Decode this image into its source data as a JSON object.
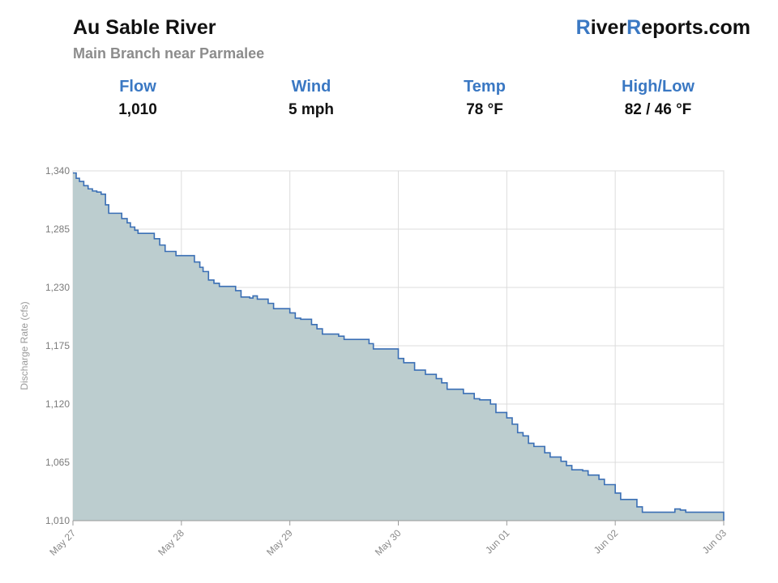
{
  "header": {
    "title": "Au Sable River",
    "subtitle": "Main Branch near Parmalee",
    "brand_r1": "R",
    "brand_part1": "iver",
    "brand_r2": "R",
    "brand_part2": "eports.com"
  },
  "stats": [
    {
      "label": "Flow",
      "value": "1,010"
    },
    {
      "label": "Wind",
      "value": "5 mph"
    },
    {
      "label": "Temp",
      "value": "78 °F"
    },
    {
      "label": "High/Low",
      "value": "82 / 46 °F"
    }
  ],
  "colors": {
    "accent": "#3a78c3",
    "line": "#3a6fb5",
    "fill": "#bccdcf",
    "grid": "#dcdcdc"
  },
  "chart_data": {
    "type": "area",
    "title": "",
    "xlabel": "",
    "ylabel": "Discharge Rate (cfs)",
    "ylim": [
      1010,
      1340
    ],
    "xlim_days": [
      0,
      7
    ],
    "grid": true,
    "y_ticks": [
      "1,340",
      "1,285",
      "1,230",
      "1,175",
      "1,120",
      "1,065",
      "1,010"
    ],
    "y_tick_values": [
      1340,
      1285,
      1230,
      1175,
      1120,
      1065,
      1010
    ],
    "x_ticks": [
      "May 27",
      "May 28",
      "May 29",
      "May 30",
      "Jun 01",
      "Jun 02",
      "Jun 03"
    ],
    "x_tick_days": [
      0,
      1,
      2,
      3,
      4,
      5,
      6
    ],
    "series": [
      {
        "x_days": [
          0,
          0.03,
          0.06,
          0.1,
          0.14,
          0.18,
          0.22,
          0.26,
          0.3,
          0.33,
          0.37,
          0.45,
          0.5,
          0.53,
          0.57,
          0.6,
          0.65,
          0.75,
          0.8,
          0.85,
          0.95,
          1.05,
          1.12,
          1.17,
          1.2,
          1.25,
          1.3,
          1.35,
          1.4,
          1.5,
          1.55,
          1.6,
          1.63,
          1.66,
          1.7,
          1.8,
          1.85,
          1.88,
          1.92,
          2.0,
          2.05,
          2.1,
          2.2,
          2.25,
          2.3,
          2.45,
          2.5,
          2.7,
          2.73,
          2.77,
          2.8,
          2.85,
          3.0,
          3.05,
          3.15,
          3.2,
          3.25,
          3.35,
          3.4,
          3.45,
          3.5,
          3.6,
          3.65,
          3.7,
          3.75,
          3.85,
          3.9,
          4.0,
          4.05,
          4.1,
          4.15,
          4.2,
          4.25,
          4.35,
          4.4,
          4.5,
          4.55,
          4.6,
          4.7,
          4.75,
          4.85,
          4.9,
          5.0,
          5.05,
          5.15,
          5.2,
          5.25,
          5.3,
          5.5,
          5.55,
          5.6,
          5.65,
          6.0
        ],
        "values": [
          1338,
          1333,
          1330,
          1326,
          1323,
          1321,
          1320,
          1318,
          1308,
          1300,
          1300,
          1295,
          1291,
          1287,
          1284,
          1281,
          1281,
          1276,
          1270,
          1264,
          1260,
          1260,
          1254,
          1249,
          1245,
          1237,
          1234,
          1231,
          1231,
          1227,
          1221,
          1221,
          1220,
          1222,
          1219,
          1215,
          1210,
          1210,
          1210,
          1206,
          1201,
          1200,
          1195,
          1191,
          1186,
          1184,
          1181,
          1181,
          1177,
          1172,
          1172,
          1172,
          1163,
          1159,
          1152,
          1152,
          1148,
          1144,
          1140,
          1134,
          1134,
          1130,
          1130,
          1125,
          1124,
          1120,
          1112,
          1107,
          1101,
          1093,
          1090,
          1083,
          1080,
          1074,
          1070,
          1066,
          1062,
          1058,
          1057,
          1053,
          1049,
          1044,
          1036,
          1030,
          1030,
          1023,
          1018,
          1018,
          1018,
          1021,
          1020,
          1018,
          1010
        ]
      }
    ]
  }
}
